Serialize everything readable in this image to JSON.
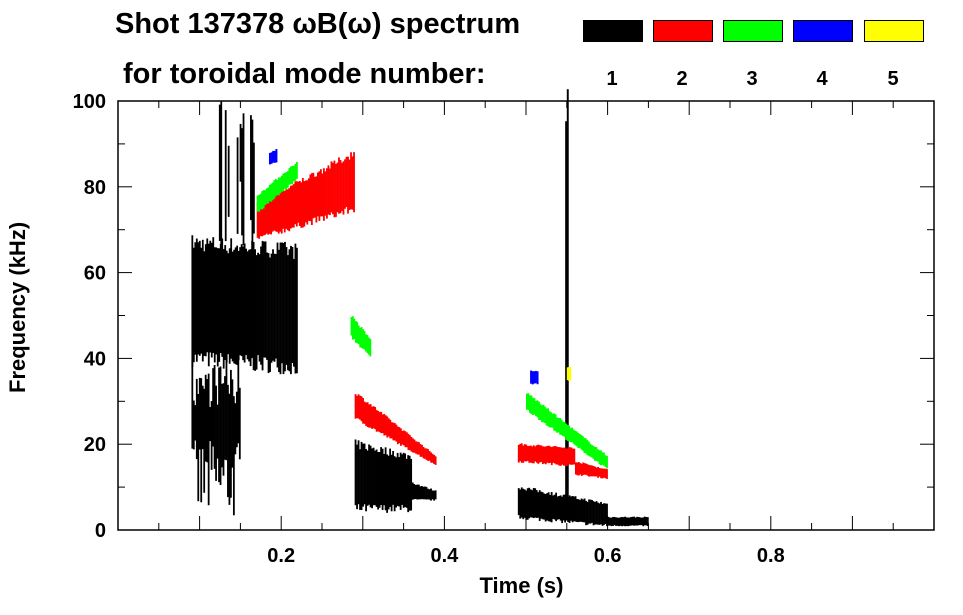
{
  "chart_data": {
    "type": "heatmap",
    "title": "Shot 137378 ωB(ω) spectrum",
    "subtitle": "for toroidal mode number:",
    "xlabel": "Time (s)",
    "ylabel": "Frequency (kHz)",
    "xlim": [
      0,
      1.0
    ],
    "ylim": [
      0,
      100
    ],
    "x_ticks": [
      0.2,
      0.4,
      0.6,
      0.8
    ],
    "x_tick_labels": [
      "0.2",
      "0.4",
      "0.6",
      "0.8"
    ],
    "y_ticks": [
      0,
      20,
      40,
      60,
      80,
      100
    ],
    "y_tick_labels": [
      "0",
      "20",
      "40",
      "60",
      "80",
      "100"
    ],
    "legend": [
      {
        "label": "1",
        "color": "#000000"
      },
      {
        "label": "2",
        "color": "#ff0000"
      },
      {
        "label": "3",
        "color": "#00ff00"
      },
      {
        "label": "4",
        "color": "#0000ff"
      },
      {
        "label": "5",
        "color": "#ffff00"
      }
    ],
    "features": [
      {
        "mode": 1,
        "t": [
          0.09,
          0.22
        ],
        "f_start": [
          40,
          67
        ],
        "f_end": [
          38,
          65
        ]
      },
      {
        "mode": 1,
        "t": [
          0.09,
          0.15
        ],
        "f_start": [
          2,
          40
        ],
        "f_end": [
          2,
          40
        ],
        "streaky": true
      },
      {
        "mode": 1,
        "t": [
          0.12,
          0.2
        ],
        "f_start": [
          65,
          100
        ],
        "f_end": [
          65,
          100
        ],
        "streaky": true,
        "sparse": true
      },
      {
        "mode": 1,
        "t": [
          0.29,
          0.36
        ],
        "f_start": [
          5,
          20
        ],
        "f_end": [
          5,
          17
        ]
      },
      {
        "mode": 1,
        "t": [
          0.36,
          0.39
        ],
        "f_start": [
          7,
          11
        ],
        "f_end": [
          7,
          9
        ]
      },
      {
        "mode": 1,
        "t": [
          0.49,
          0.6
        ],
        "f_start": [
          3,
          10
        ],
        "f_end": [
          1,
          6
        ]
      },
      {
        "mode": 1,
        "t": [
          0.6,
          0.65
        ],
        "f_start": [
          1,
          3
        ],
        "f_end": [
          1,
          3
        ]
      },
      {
        "mode": 1,
        "t": [
          0.548,
          0.552
        ],
        "f_start": [
          0,
          100
        ],
        "f_end": [
          0,
          100
        ]
      },
      {
        "mode": 2,
        "t": [
          0.17,
          0.29
        ],
        "f_start": [
          68,
          76
        ],
        "f_end": [
          75,
          88
        ]
      },
      {
        "mode": 2,
        "t": [
          0.29,
          0.39
        ],
        "f_start": [
          26,
          32
        ],
        "f_end": [
          15,
          17
        ]
      },
      {
        "mode": 2,
        "t": [
          0.49,
          0.56
        ],
        "f_start": [
          16,
          20
        ],
        "f_end": [
          15,
          19
        ]
      },
      {
        "mode": 2,
        "t": [
          0.56,
          0.6
        ],
        "f_start": [
          13,
          16
        ],
        "f_end": [
          12,
          14
        ]
      },
      {
        "mode": 3,
        "t": [
          0.17,
          0.22
        ],
        "f_start": [
          74,
          78
        ],
        "f_end": [
          82,
          86
        ]
      },
      {
        "mode": 3,
        "t": [
          0.285,
          0.31
        ],
        "f_start": [
          45,
          50
        ],
        "f_end": [
          40,
          44
        ]
      },
      {
        "mode": 3,
        "t": [
          0.5,
          0.6
        ],
        "f_start": [
          28,
          32
        ],
        "f_end": [
          14,
          17
        ]
      },
      {
        "mode": 4,
        "t": [
          0.185,
          0.195
        ],
        "f_start": [
          85,
          88
        ],
        "f_end": [
          86,
          89
        ]
      },
      {
        "mode": 4,
        "t": [
          0.505,
          0.515
        ],
        "f_start": [
          34,
          37
        ],
        "f_end": [
          34,
          37
        ]
      },
      {
        "mode": 5,
        "t": [
          0.55,
          0.555
        ],
        "f_start": [
          35,
          38
        ],
        "f_end": [
          35,
          38
        ]
      }
    ]
  }
}
